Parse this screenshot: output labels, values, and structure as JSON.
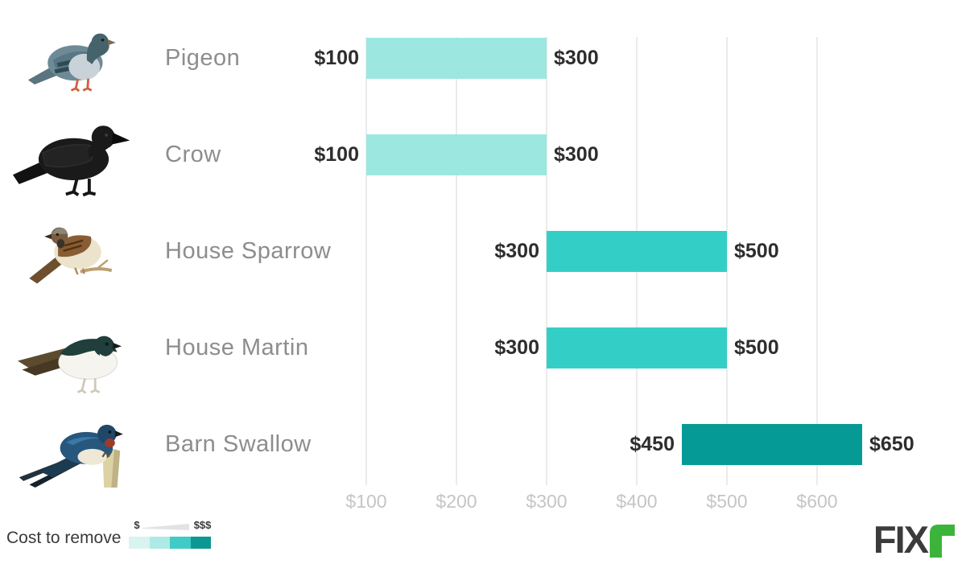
{
  "chart_data": {
    "type": "bar",
    "orientation": "horizontal-range",
    "value_unit": "$",
    "categories": [
      "Pigeon",
      "Crow",
      "House Sparrow",
      "House Martin",
      "Barn Swallow"
    ],
    "rows": [
      {
        "label": "Pigeon",
        "min": 100,
        "max": 300,
        "min_label": "$100",
        "max_label": "$300",
        "level": "low"
      },
      {
        "label": "Crow",
        "min": 100,
        "max": 300,
        "min_label": "$100",
        "max_label": "$300",
        "level": "low"
      },
      {
        "label": "House Sparrow",
        "min": 300,
        "max": 500,
        "min_label": "$300",
        "max_label": "$500",
        "level": "medium"
      },
      {
        "label": "House Martin",
        "min": 300,
        "max": 500,
        "min_label": "$300",
        "max_label": "$500",
        "level": "medium"
      },
      {
        "label": "Barn Swallow",
        "min": 450,
        "max": 650,
        "min_label": "$450",
        "max_label": "$650",
        "level": "high"
      }
    ],
    "x_axis": {
      "ticks": [
        {
          "value": 100,
          "label": "$100"
        },
        {
          "value": 200,
          "label": "$200"
        },
        {
          "value": 300,
          "label": "$300"
        },
        {
          "value": 400,
          "label": "$400"
        },
        {
          "value": 500,
          "label": "$500"
        },
        {
          "value": 600,
          "label": "$600"
        }
      ],
      "range": [
        100,
        650
      ]
    },
    "colors": {
      "low": "#9DE7E1",
      "medium": "#33CFC7",
      "high": "#069A96"
    },
    "grid_color": "#ebebeb",
    "legend_position": "bottom-left"
  },
  "legend": {
    "label": "Cost to remove",
    "min_symbol": "$",
    "max_symbol": "$$$",
    "swatches": [
      "#D9F3F1",
      "#AEEAE5",
      "#40CBC4",
      "#0D9793"
    ]
  },
  "logo": {
    "text": "FIX",
    "accent_color": "#3CB43B",
    "dark_color": "#3b3b3b"
  },
  "icons": {
    "pigeon": "pigeon-illustration",
    "crow": "crow-illustration",
    "house_sparrow": "house-sparrow-illustration",
    "house_martin": "house-martin-illustration",
    "barn_swallow": "barn-swallow-illustration",
    "fixr_r_glyph": "fixr-r-glyph-icon"
  }
}
